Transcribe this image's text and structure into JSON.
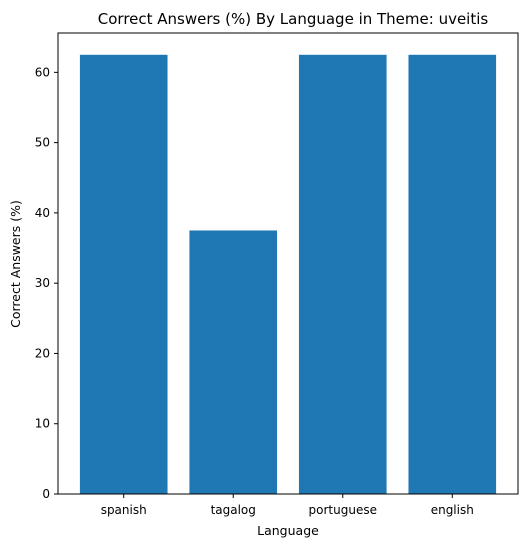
{
  "chart_data": {
    "type": "bar",
    "title": "Correct Answers (%) By Language in Theme: uveitis",
    "xlabel": "Language",
    "ylabel": "Correct Answers (%)",
    "categories": [
      "spanish",
      "tagalog",
      "portuguese",
      "english"
    ],
    "values": [
      62.5,
      37.5,
      62.5,
      62.5
    ],
    "ylim": [
      0,
      65.6
    ],
    "yticks": [
      0,
      10,
      20,
      30,
      40,
      50,
      60
    ],
    "bar_color": "#1f77b4",
    "grid": false,
    "legend": "none"
  }
}
